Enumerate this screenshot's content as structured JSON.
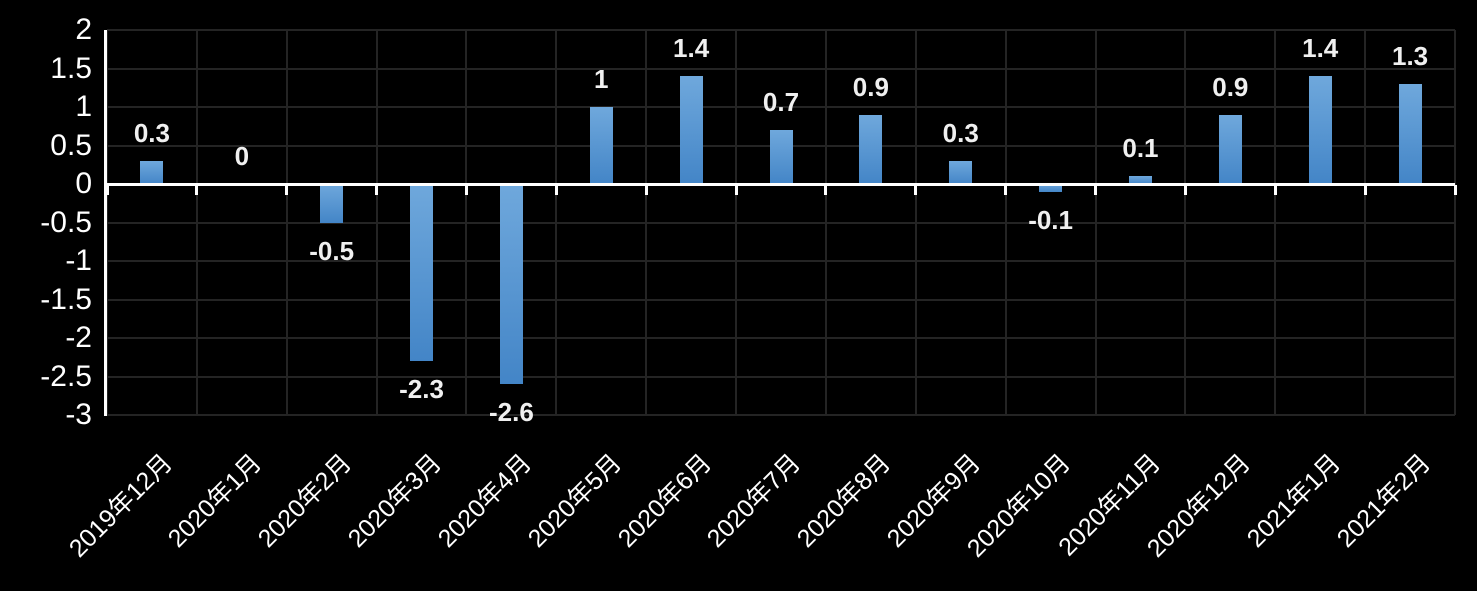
{
  "chart_data": {
    "type": "bar",
    "title": "",
    "xlabel": "",
    "ylabel": "",
    "categories": [
      "2019年12月",
      "2020年1月",
      "2020年2月",
      "2020年3月",
      "2020年4月",
      "2020年5月",
      "2020年6月",
      "2020年7月",
      "2020年8月",
      "2020年9月",
      "2020年10月",
      "2020年11月",
      "2020年12月",
      "2021年1月",
      "2021年2月"
    ],
    "values": [
      0.3,
      0,
      -0.5,
      -2.3,
      -2.6,
      1,
      1.4,
      0.7,
      0.9,
      0.3,
      -0.1,
      0.1,
      0.9,
      1.4,
      1.3
    ],
    "value_labels": [
      "0.3",
      "0",
      "-0.5",
      "-2.3",
      "-2.6",
      "1",
      "1.4",
      "0.7",
      "0.9",
      "0.3",
      "-0.1",
      "0.1",
      "0.9",
      "1.4",
      "1.3"
    ],
    "ylim": [
      -3,
      2
    ],
    "ytick_step": 0.5,
    "ytick_labels": [
      "2",
      "1.5",
      "1",
      "0.5",
      "0",
      "-0.5",
      "-1",
      "-1.5",
      "-2",
      "-2.5",
      "-3"
    ],
    "grid": true,
    "legend": "none",
    "series_name": "",
    "colors": {
      "background": "#000000",
      "gridline": "#242424",
      "axis_line": "#ffffff",
      "bar_gradient_top": "#6fa8dc",
      "bar_gradient_bottom": "#4385c7",
      "data_label_text": "#f0f0f0",
      "tick_label_text": "#ffffff"
    }
  }
}
